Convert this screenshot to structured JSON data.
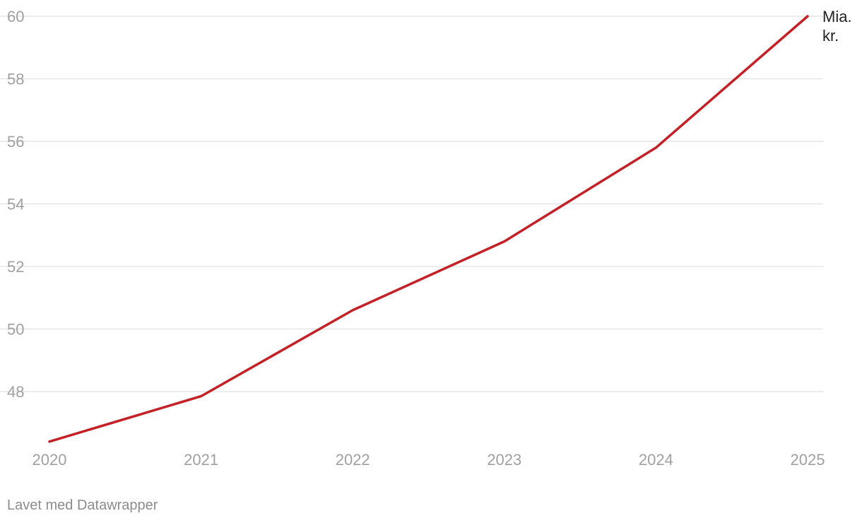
{
  "chart_data": {
    "type": "line",
    "x": [
      "2020",
      "2021",
      "2022",
      "2023",
      "2024",
      "2025"
    ],
    "series": [
      {
        "values": [
          46.4,
          47.85,
          50.6,
          52.8,
          55.8,
          60.0
        ],
        "color": "#c42127",
        "end_label": "Mia. kr."
      }
    ],
    "y_ticks": [
      48,
      50,
      52,
      54,
      56,
      58,
      60
    ],
    "ylim": [
      46.3,
      60.1
    ],
    "grid": true
  },
  "footer": {
    "credit": "Lavet med Datawrapper"
  }
}
